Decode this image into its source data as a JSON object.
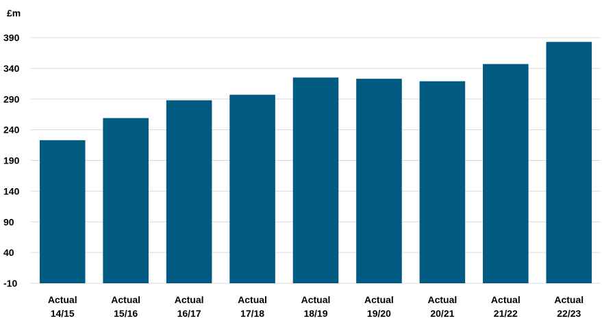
{
  "chart_data": {
    "type": "bar",
    "ylabel": "£m",
    "categories": [
      [
        "Actual",
        "14/15"
      ],
      [
        "Actual",
        "15/16"
      ],
      [
        "Actual",
        "16/17"
      ],
      [
        "Actual",
        "17/18"
      ],
      [
        "Actual",
        "18/19"
      ],
      [
        "Actual",
        "19/20"
      ],
      [
        "Actual",
        "20/21"
      ],
      [
        "Actual",
        "21/22"
      ],
      [
        "Actual",
        "22/23"
      ]
    ],
    "values": [
      223,
      259,
      288,
      297,
      325,
      323,
      319,
      347,
      383
    ],
    "ylim": [
      -10,
      390
    ],
    "yticks": [
      -10,
      40,
      90,
      140,
      190,
      240,
      290,
      340,
      390
    ],
    "grid": true,
    "bar_color": "#005a82",
    "grid_color": "#d9d9d9"
  }
}
